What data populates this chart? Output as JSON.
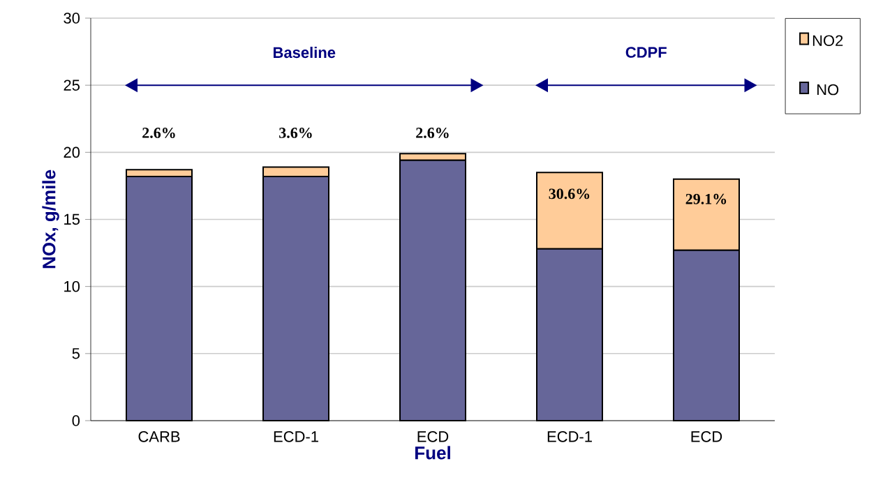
{
  "chart_data": {
    "type": "bar",
    "stacked": true,
    "xlabel": "Fuel",
    "ylabel": "NOx, g/mile",
    "categories": [
      "CARB",
      "ECD-1",
      "ECD",
      "ECD-1",
      "ECD"
    ],
    "series": [
      {
        "name": "NO",
        "color": "#666699",
        "values": [
          18.2,
          18.2,
          19.4,
          12.8,
          12.7
        ]
      },
      {
        "name": "NO2",
        "color": "#ffcc99",
        "values": [
          0.5,
          0.7,
          0.5,
          5.7,
          5.3
        ]
      }
    ],
    "ylim": [
      0,
      30
    ],
    "yticks": [
      0,
      5,
      10,
      15,
      20,
      25,
      30
    ],
    "grid": "y",
    "legend": "right",
    "annotations": [
      "Baseline",
      "CDPF",
      "2.6%",
      "3.6%",
      "2.6%",
      "30.6%",
      "29.1%"
    ]
  }
}
